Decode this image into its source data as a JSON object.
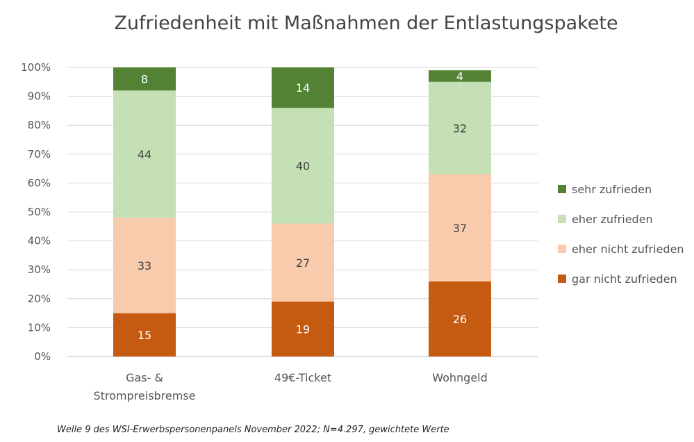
{
  "chart_data": {
    "type": "bar",
    "stacked": true,
    "title": "Zufriedenheit mit Maßnahmen der Entlastungspakete",
    "categories": [
      [
        "Gas- &",
        "Strompreisbremse"
      ],
      [
        "49€-Ticket"
      ],
      [
        "Wohngeld"
      ]
    ],
    "ylim": [
      0,
      100
    ],
    "yticks": [
      "0%",
      "10%",
      "20%",
      "30%",
      "40%",
      "50%",
      "60%",
      "70%",
      "80%",
      "90%",
      "100%"
    ],
    "grid": true,
    "legend_position": "right",
    "series": [
      {
        "name": "gar nicht zufrieden",
        "color": "#c55a11",
        "label_color": "#ffffff",
        "values": [
          15,
          19,
          26
        ]
      },
      {
        "name": "eher nicht zufrieden",
        "color": "#f8cbad",
        "label_color": "#404040",
        "values": [
          33,
          27,
          37
        ]
      },
      {
        "name": "eher zufrieden",
        "color": "#c5e0b4",
        "label_color": "#404040",
        "values": [
          44,
          40,
          32
        ]
      },
      {
        "name": "sehr zufrieden",
        "color": "#548235",
        "label_color": "#ffffff",
        "values": [
          8,
          14,
          4
        ]
      }
    ],
    "legend_order": [
      "sehr zufrieden",
      "eher zufrieden",
      "eher nicht zufrieden",
      "gar nicht zufrieden"
    ]
  },
  "footnote": "Welle 9 des WSI-Erwerbspersonenpanels November 2022; N=4.297, gewichtete Werte"
}
